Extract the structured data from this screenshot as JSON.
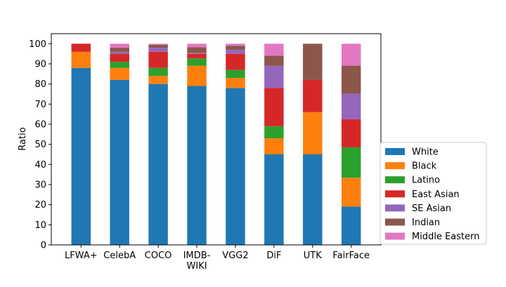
{
  "chart_data": {
    "type": "bar",
    "stacked": true,
    "title": "",
    "xlabel": "",
    "ylabel": "Ratio",
    "ylim": [
      0,
      105
    ],
    "yticks": [
      0,
      10,
      20,
      30,
      40,
      50,
      60,
      70,
      80,
      90,
      100
    ],
    "grid": false,
    "legend_placement": "right, outside lower",
    "categories": [
      "LFWA+",
      "CelebA",
      "COCO",
      "IMDB-\nWIKI",
      "VGG2",
      "DiF",
      "UTK",
      "FairFace"
    ],
    "series": [
      {
        "name": "White",
        "color": "#1f77b4",
        "values": [
          88,
          82,
          80,
          79,
          78,
          45,
          45,
          19
        ]
      },
      {
        "name": "Black",
        "color": "#ff7f0e",
        "values": [
          8,
          6,
          4,
          10,
          5,
          8,
          21,
          14.4
        ]
      },
      {
        "name": "Latino",
        "color": "#2ca02c",
        "values": [
          0,
          3,
          4,
          3.7,
          4,
          6,
          0,
          15.1
        ]
      },
      {
        "name": "East Asian",
        "color": "#d62728",
        "values": [
          4,
          4,
          8,
          2.3,
          8,
          19,
          16,
          14
        ]
      },
      {
        "name": "SE Asian",
        "color": "#9467bd",
        "values": [
          0,
          1,
          2,
          0.5,
          2,
          11,
          0,
          12.6
        ]
      },
      {
        "name": "Indian",
        "color": "#8c564b",
        "values": [
          0,
          2,
          1.5,
          2.7,
          2,
          5,
          18,
          14
        ]
      },
      {
        "name": "Middle Eastern",
        "color": "#e377c2",
        "values": [
          0,
          2,
          0.5,
          1.8,
          1,
          6,
          0,
          10.9
        ]
      }
    ]
  }
}
